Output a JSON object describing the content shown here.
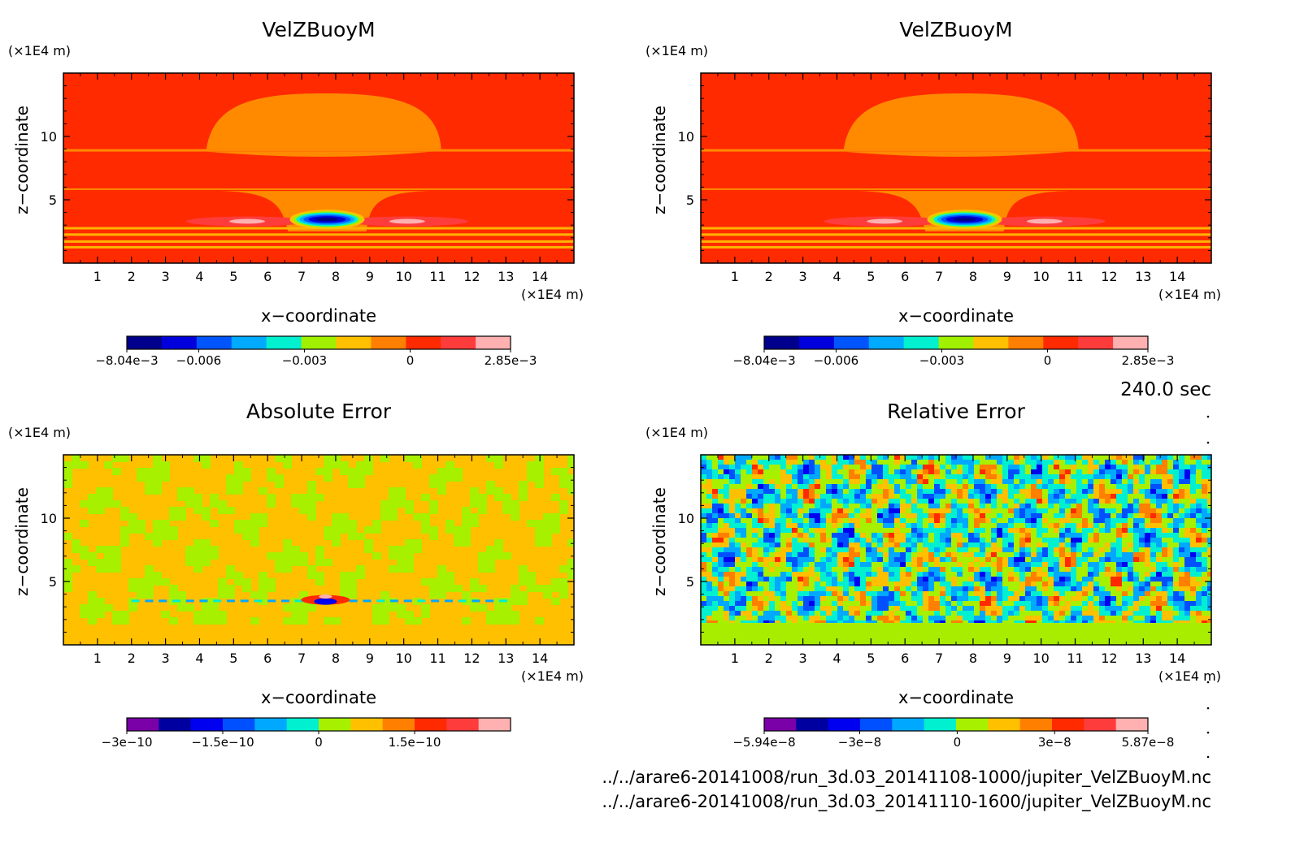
{
  "time_label": "240.0 sec",
  "files": [
    "../../arare6-20141008/run_3d.03_20141108-1000/jupiter_VelZBuoyM.nc",
    "../../arare6-20141008/run_3d.03_20141110-1600/jupiter_VelZBuoyM.nc"
  ],
  "colors": {
    "background_field": "#ff2a00",
    "anomaly_orange": "#ff8a00",
    "stripe_yellow": "#ffb300",
    "abs_error_yellow": "#ffc000",
    "abs_error_green": "#a6f000",
    "rel_error_lime": "#a8ec00"
  },
  "chart_data": [
    {
      "type": "heatmap",
      "title": "VelZBuoyM",
      "xlabel": "x−coordinate",
      "ylabel": "z−coordinate",
      "x_unit": "(×1E4 m)",
      "y_unit": "(×1E4 m)",
      "xlim": [
        0,
        15
      ],
      "ylim": [
        0,
        15
      ],
      "x_ticks": [
        1,
        2,
        3,
        4,
        5,
        6,
        7,
        8,
        9,
        10,
        11,
        12,
        13,
        14
      ],
      "y_ticks": [
        5,
        10
      ],
      "colorbar": {
        "labels": [
          {
            "value": -0.00804,
            "text": "−8.04e−3"
          },
          {
            "value": -0.006,
            "text": "−0.006"
          },
          {
            "value": -0.003,
            "text": "−0.003"
          },
          {
            "value": 0,
            "text": "0"
          },
          {
            "value": 0.00285,
            "text": "2.85e−3"
          }
        ],
        "vmin": -0.00804,
        "vmax": 0.00285,
        "colors": [
          "#00008c",
          "#0000dc",
          "#0055ff",
          "#00aaff",
          "#00f0d0",
          "#a0f000",
          "#ffc000",
          "#ff8000",
          "#ff2a00",
          "#ff3c3c",
          "#ffb0b0"
        ]
      },
      "field": "velzbuoy",
      "min_value": -0.00804,
      "max_value": 0.00285
    },
    {
      "type": "heatmap",
      "title": "VelZBuoyM",
      "xlabel": "x−coordinate",
      "ylabel": "z−coordinate",
      "x_unit": "(×1E4 m)",
      "y_unit": "(×1E4 m)",
      "xlim": [
        0,
        15
      ],
      "ylim": [
        0,
        15
      ],
      "x_ticks": [
        1,
        2,
        3,
        4,
        5,
        6,
        7,
        8,
        9,
        10,
        11,
        12,
        13,
        14
      ],
      "y_ticks": [
        5,
        10
      ],
      "colorbar": {
        "labels": [
          {
            "value": -0.00804,
            "text": "−8.04e−3"
          },
          {
            "value": -0.006,
            "text": "−0.006"
          },
          {
            "value": -0.003,
            "text": "−0.003"
          },
          {
            "value": 0,
            "text": "0"
          },
          {
            "value": 0.00285,
            "text": "2.85e−3"
          }
        ],
        "vmin": -0.00804,
        "vmax": 0.00285,
        "colors": [
          "#00008c",
          "#0000dc",
          "#0055ff",
          "#00aaff",
          "#00f0d0",
          "#a0f000",
          "#ffc000",
          "#ff8000",
          "#ff2a00",
          "#ff3c3c",
          "#ffb0b0"
        ]
      },
      "field": "velzbuoy",
      "min_value": -0.00804,
      "max_value": 0.00285
    },
    {
      "type": "heatmap",
      "title": "Absolute Error",
      "xlabel": "x−coordinate",
      "ylabel": "z−coordinate",
      "x_unit": "(×1E4 m)",
      "y_unit": "(×1E4 m)",
      "xlim": [
        0,
        15
      ],
      "ylim": [
        0,
        15
      ],
      "x_ticks": [
        1,
        2,
        3,
        4,
        5,
        6,
        7,
        8,
        9,
        10,
        11,
        12,
        13,
        14
      ],
      "y_ticks": [
        5,
        10
      ],
      "colorbar": {
        "labels": [
          {
            "value": -3e-10,
            "text": "−3e−10"
          },
          {
            "value": -1.5e-10,
            "text": "−1.5e−10"
          },
          {
            "value": 0,
            "text": "0"
          },
          {
            "value": 1.5e-10,
            "text": "1.5e−10"
          }
        ],
        "vmin": -3e-10,
        "vmax": 3e-10,
        "colors": [
          "#7a00a8",
          "#0000a0",
          "#0000f0",
          "#0050ff",
          "#00a8ff",
          "#00f0d0",
          "#a6f000",
          "#ffc000",
          "#ff8000",
          "#ff2a00",
          "#ff3c3c",
          "#ffb0b0"
        ]
      },
      "field": "abs_error"
    },
    {
      "type": "heatmap",
      "title": "Relative Error",
      "xlabel": "x−coordinate",
      "ylabel": "z−coordinate",
      "x_unit": "(×1E4 m)",
      "y_unit": "(×1E4 m)",
      "xlim": [
        0,
        15
      ],
      "ylim": [
        0,
        15
      ],
      "x_ticks": [
        1,
        2,
        3,
        4,
        5,
        6,
        7,
        8,
        9,
        10,
        11,
        12,
        13,
        14
      ],
      "y_ticks": [
        5,
        10
      ],
      "colorbar": {
        "labels": [
          {
            "value": -5.94e-08,
            "text": "−5.94e−8"
          },
          {
            "value": -3e-08,
            "text": "−3e−8"
          },
          {
            "value": 0,
            "text": "0"
          },
          {
            "value": 3e-08,
            "text": "3e−8"
          },
          {
            "value": 5.87e-08,
            "text": "5.87e−8"
          }
        ],
        "vmin": -5.94e-08,
        "vmax": 5.87e-08,
        "colors": [
          "#7a00a8",
          "#0000a0",
          "#0000f0",
          "#0050ff",
          "#00a8ff",
          "#00f0d0",
          "#a6f000",
          "#ffc000",
          "#ff8000",
          "#ff2a00",
          "#ff3c3c",
          "#ffb0b0"
        ]
      },
      "field": "rel_error"
    }
  ]
}
